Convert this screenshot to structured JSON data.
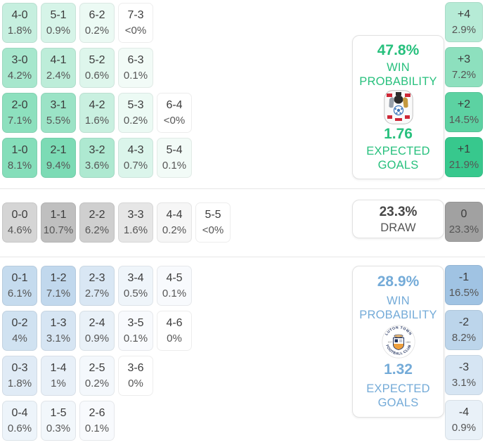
{
  "colors": {
    "green_base": "44,197,135",
    "gray_base": "84,84,84",
    "blue_base": "120,170,215",
    "green_text": "#27c07d",
    "blue_text": "#74abd8",
    "draw_text": "#474747",
    "score_text": "#3c3c3c",
    "pct_text": "#565656",
    "divider": "#e7e7e7",
    "panel_border": "#e2e2e2"
  },
  "chart_data": {
    "type": "heatmap",
    "description": "Correct-score probability matrix with goal-margin columns, win/draw probabilities and expected goals",
    "sections": [
      {
        "name": "home",
        "color": "green",
        "score_rows": [
          [
            {
              "s": "4-0",
              "v": "1.8%",
              "p": 1.8
            },
            {
              "s": "5-1",
              "v": "0.9%",
              "p": 0.9
            },
            {
              "s": "6-2",
              "v": "0.2%",
              "p": 0.2
            },
            {
              "s": "7-3",
              "v": "<0%",
              "p": 0
            }
          ],
          [
            {
              "s": "3-0",
              "v": "4.2%",
              "p": 4.2
            },
            {
              "s": "4-1",
              "v": "2.4%",
              "p": 2.4
            },
            {
              "s": "5-2",
              "v": "0.6%",
              "p": 0.6
            },
            {
              "s": "6-3",
              "v": "0.1%",
              "p": 0.1
            }
          ],
          [
            {
              "s": "2-0",
              "v": "7.1%",
              "p": 7.1
            },
            {
              "s": "3-1",
              "v": "5.5%",
              "p": 5.5
            },
            {
              "s": "4-2",
              "v": "1.6%",
              "p": 1.6
            },
            {
              "s": "5-3",
              "v": "0.2%",
              "p": 0.2
            },
            {
              "s": "6-4",
              "v": "<0%",
              "p": 0
            }
          ],
          [
            {
              "s": "1-0",
              "v": "8.1%",
              "p": 8.1
            },
            {
              "s": "2-1",
              "v": "9.4%",
              "p": 9.4
            },
            {
              "s": "3-2",
              "v": "3.6%",
              "p": 3.6
            },
            {
              "s": "4-3",
              "v": "0.7%",
              "p": 0.7
            },
            {
              "s": "5-4",
              "v": "0.1%",
              "p": 0.1
            }
          ]
        ],
        "goal_margins": [
          {
            "s": "+4",
            "v": "2.9%",
            "p": 2.9
          },
          {
            "s": "+3",
            "v": "7.2%",
            "p": 7.2
          },
          {
            "s": "+2",
            "v": "14.5%",
            "p": 14.5
          },
          {
            "s": "+1",
            "v": "21.9%",
            "p": 21.9
          }
        ],
        "win_probability": "47.8%",
        "win_label": [
          "WIN",
          "PROBABILITY"
        ],
        "expected_goals": "1.76",
        "xg_label": [
          "EXPECTED",
          "GOALS"
        ],
        "badge_icon": "coventry-city-badge"
      },
      {
        "name": "draw",
        "color": "gray",
        "score_rows": [
          [
            {
              "s": "0-0",
              "v": "4.6%",
              "p": 4.6
            },
            {
              "s": "1-1",
              "v": "10.7%",
              "p": 10.7
            },
            {
              "s": "2-2",
              "v": "6.2%",
              "p": 6.2
            },
            {
              "s": "3-3",
              "v": "1.6%",
              "p": 1.6
            },
            {
              "s": "4-4",
              "v": "0.2%",
              "p": 0.2
            },
            {
              "s": "5-5",
              "v": "<0%",
              "p": 0
            }
          ]
        ],
        "goal_margins": [
          {
            "s": "0",
            "v": "23.3%",
            "p": 23.3
          }
        ],
        "draw_probability": "23.3%",
        "draw_label": "DRAW"
      },
      {
        "name": "away",
        "color": "blue",
        "score_rows": [
          [
            {
              "s": "0-1",
              "v": "6.1%",
              "p": 6.1
            },
            {
              "s": "1-2",
              "v": "7.1%",
              "p": 7.1
            },
            {
              "s": "2-3",
              "v": "2.7%",
              "p": 2.7
            },
            {
              "s": "3-4",
              "v": "0.5%",
              "p": 0.5
            },
            {
              "s": "4-5",
              "v": "0.1%",
              "p": 0.1
            }
          ],
          [
            {
              "s": "0-2",
              "v": "4%",
              "p": 4.0
            },
            {
              "s": "1-3",
              "v": "3.1%",
              "p": 3.1
            },
            {
              "s": "2-4",
              "v": "0.9%",
              "p": 0.9
            },
            {
              "s": "3-5",
              "v": "0.1%",
              "p": 0.1
            },
            {
              "s": "4-6",
              "v": "0%",
              "p": 0
            }
          ],
          [
            {
              "s": "0-3",
              "v": "1.8%",
              "p": 1.8
            },
            {
              "s": "1-4",
              "v": "1%",
              "p": 1.0
            },
            {
              "s": "2-5",
              "v": "0.2%",
              "p": 0.2
            },
            {
              "s": "3-6",
              "v": "0%",
              "p": 0
            }
          ],
          [
            {
              "s": "0-4",
              "v": "0.6%",
              "p": 0.6
            },
            {
              "s": "1-5",
              "v": "0.3%",
              "p": 0.3
            },
            {
              "s": "2-6",
              "v": "0.1%",
              "p": 0.1
            }
          ]
        ],
        "goal_margins": [
          {
            "s": "-1",
            "v": "16.5%",
            "p": 16.5
          },
          {
            "s": "-2",
            "v": "8.2%",
            "p": 8.2
          },
          {
            "s": "-3",
            "v": "3.1%",
            "p": 3.1
          },
          {
            "s": "-4",
            "v": "0.9%",
            "p": 0.9
          }
        ],
        "win_probability": "28.9%",
        "win_label": [
          "WIN",
          "PROBABILITY"
        ],
        "expected_goals": "1.32",
        "xg_label": [
          "EXPECTED",
          "GOALS"
        ],
        "badge_icon": "luton-town-badge",
        "badge_text": {
          "top": "LUTON TOWN",
          "bottom": "FOOTBALL CLUB",
          "left": "EST",
          "right": "1885"
        }
      }
    ]
  }
}
